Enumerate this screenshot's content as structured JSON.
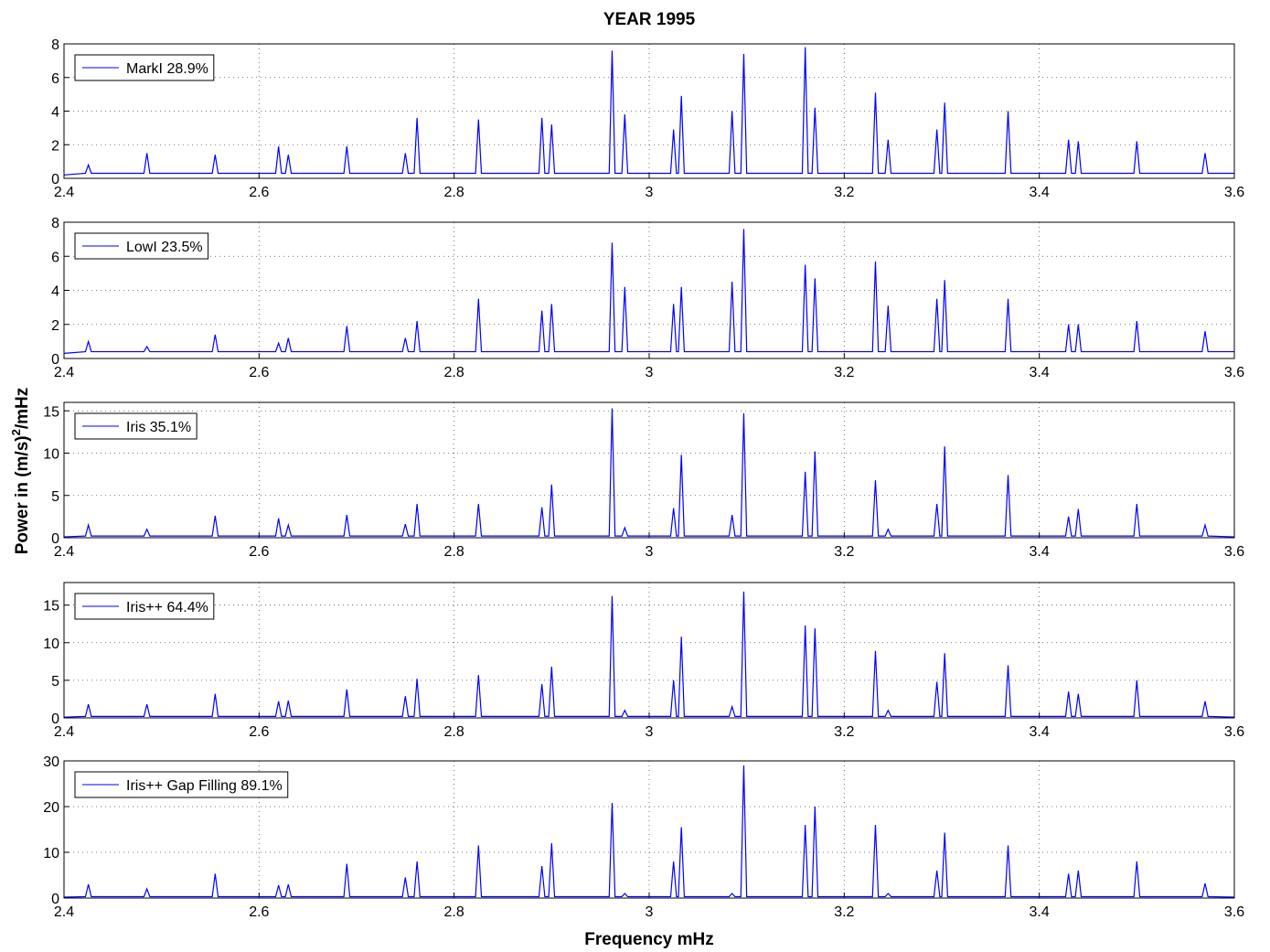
{
  "chart_data": [
    {
      "type": "line",
      "title": "YEAR 1995",
      "grid": true,
      "legend": "upper left",
      "x": [
        2.4,
        2.422,
        2.425,
        2.428,
        2.482,
        2.485,
        2.488,
        2.552,
        2.555,
        2.558,
        2.617,
        2.62,
        2.623,
        2.627,
        2.63,
        2.633,
        2.687,
        2.69,
        2.693,
        2.747,
        2.75,
        2.753,
        2.759,
        2.762,
        2.765,
        2.822,
        2.825,
        2.828,
        2.887,
        2.89,
        2.893,
        2.897,
        2.9,
        2.903,
        2.959,
        2.962,
        2.965,
        2.972,
        2.975,
        2.978,
        3.022,
        3.025,
        3.028,
        3.03,
        3.033,
        3.036,
        3.082,
        3.085,
        3.088,
        3.094,
        3.097,
        3.1,
        3.157,
        3.16,
        3.163,
        3.167,
        3.17,
        3.173,
        3.229,
        3.232,
        3.235,
        3.242,
        3.245,
        3.248,
        3.292,
        3.295,
        3.298,
        3.3,
        3.303,
        3.306,
        3.365,
        3.368,
        3.371,
        3.427,
        3.43,
        3.433,
        3.437,
        3.44,
        3.443,
        3.497,
        3.5,
        3.503,
        3.567,
        3.57,
        3.573,
        3.6
      ],
      "xlim": [
        2.4,
        3.6
      ],
      "xticks": [
        2.4,
        2.6,
        2.8,
        3,
        3.2,
        3.4,
        3.6
      ],
      "ylim": [
        0,
        8
      ],
      "yticks": [
        0,
        2,
        4,
        6,
        8
      ],
      "series": [
        {
          "name": "MarkI 28.9%",
          "color": "#0000ff",
          "values": [
            0.2,
            0.3,
            0.8,
            0.3,
            0.3,
            1.5,
            0.3,
            0.3,
            1.4,
            0.3,
            0.3,
            1.9,
            0.3,
            0.3,
            1.4,
            0.3,
            0.3,
            1.9,
            0.3,
            0.3,
            1.5,
            0.3,
            0.3,
            3.6,
            0.3,
            0.3,
            3.5,
            0.3,
            0.3,
            3.6,
            0.3,
            0.3,
            3.2,
            0.3,
            0.3,
            7.6,
            0.3,
            0.3,
            3.8,
            0.3,
            0.3,
            2.9,
            0.3,
            0.3,
            4.9,
            0.3,
            0.3,
            4.0,
            0.3,
            0.3,
            7.4,
            0.3,
            0.3,
            7.8,
            0.3,
            0.3,
            4.2,
            0.3,
            0.3,
            5.1,
            0.3,
            0.3,
            2.3,
            0.3,
            0.3,
            2.9,
            0.3,
            0.3,
            4.5,
            0.3,
            0.3,
            4.0,
            0.3,
            0.3,
            2.3,
            0.3,
            0.3,
            2.2,
            0.3,
            0.3,
            2.2,
            0.3,
            0.3,
            1.5,
            0.3,
            0.3
          ]
        }
      ]
    },
    {
      "type": "line",
      "grid": true,
      "legend": "upper left",
      "x": [
        2.4,
        2.422,
        2.425,
        2.428,
        2.482,
        2.485,
        2.488,
        2.552,
        2.555,
        2.558,
        2.617,
        2.62,
        2.623,
        2.627,
        2.63,
        2.633,
        2.687,
        2.69,
        2.693,
        2.747,
        2.75,
        2.753,
        2.759,
        2.762,
        2.765,
        2.822,
        2.825,
        2.828,
        2.887,
        2.89,
        2.893,
        2.897,
        2.9,
        2.903,
        2.959,
        2.962,
        2.965,
        2.972,
        2.975,
        2.978,
        3.022,
        3.025,
        3.028,
        3.03,
        3.033,
        3.036,
        3.082,
        3.085,
        3.088,
        3.094,
        3.097,
        3.1,
        3.157,
        3.16,
        3.163,
        3.167,
        3.17,
        3.173,
        3.229,
        3.232,
        3.235,
        3.242,
        3.245,
        3.248,
        3.292,
        3.295,
        3.298,
        3.3,
        3.303,
        3.306,
        3.365,
        3.368,
        3.371,
        3.427,
        3.43,
        3.433,
        3.437,
        3.44,
        3.443,
        3.497,
        3.5,
        3.503,
        3.567,
        3.57,
        3.573,
        3.6
      ],
      "xlim": [
        2.4,
        3.6
      ],
      "xticks": [
        2.4,
        2.6,
        2.8,
        3,
        3.2,
        3.4,
        3.6
      ],
      "ylim": [
        0,
        8
      ],
      "yticks": [
        0,
        2,
        4,
        6,
        8
      ],
      "series": [
        {
          "name": "LowI 23.5%",
          "color": "#0000ff",
          "values": [
            0.3,
            0.4,
            1.0,
            0.4,
            0.4,
            0.7,
            0.4,
            0.4,
            1.4,
            0.4,
            0.4,
            0.9,
            0.4,
            0.4,
            1.2,
            0.4,
            0.4,
            1.9,
            0.4,
            0.4,
            1.2,
            0.4,
            0.4,
            2.2,
            0.4,
            0.4,
            3.5,
            0.4,
            0.4,
            2.8,
            0.4,
            0.4,
            3.2,
            0.4,
            0.4,
            6.8,
            0.4,
            0.4,
            4.2,
            0.4,
            0.4,
            3.2,
            0.4,
            0.4,
            4.2,
            0.4,
            0.4,
            4.5,
            0.4,
            0.4,
            7.6,
            0.4,
            0.4,
            5.5,
            0.4,
            0.4,
            4.7,
            0.4,
            0.4,
            5.7,
            0.4,
            0.4,
            3.1,
            0.4,
            0.4,
            3.5,
            0.4,
            0.4,
            4.6,
            0.4,
            0.4,
            3.5,
            0.4,
            0.4,
            2.0,
            0.4,
            0.4,
            2.0,
            0.4,
            0.4,
            2.2,
            0.4,
            0.4,
            1.6,
            0.4,
            0.4
          ]
        }
      ]
    },
    {
      "type": "line",
      "grid": true,
      "legend": "upper left",
      "ylabel": [
        "Power in (m/s)",
        "2",
        "/mHz"
      ],
      "x": [
        2.4,
        2.422,
        2.425,
        2.428,
        2.482,
        2.485,
        2.488,
        2.552,
        2.555,
        2.558,
        2.617,
        2.62,
        2.623,
        2.627,
        2.63,
        2.633,
        2.687,
        2.69,
        2.693,
        2.747,
        2.75,
        2.753,
        2.759,
        2.762,
        2.765,
        2.822,
        2.825,
        2.828,
        2.887,
        2.89,
        2.893,
        2.897,
        2.9,
        2.903,
        2.959,
        2.962,
        2.965,
        2.972,
        2.975,
        2.978,
        3.022,
        3.025,
        3.028,
        3.03,
        3.033,
        3.036,
        3.082,
        3.085,
        3.088,
        3.094,
        3.097,
        3.1,
        3.157,
        3.16,
        3.163,
        3.167,
        3.17,
        3.173,
        3.229,
        3.232,
        3.235,
        3.242,
        3.245,
        3.248,
        3.292,
        3.295,
        3.298,
        3.3,
        3.303,
        3.306,
        3.365,
        3.368,
        3.371,
        3.427,
        3.43,
        3.433,
        3.437,
        3.44,
        3.443,
        3.497,
        3.5,
        3.503,
        3.567,
        3.57,
        3.573,
        3.6
      ],
      "xlim": [
        2.4,
        3.6
      ],
      "xticks": [
        2.4,
        2.6,
        2.8,
        3,
        3.2,
        3.4,
        3.6
      ],
      "ylim": [
        0,
        16
      ],
      "yticks": [
        0,
        5,
        10,
        15
      ],
      "series": [
        {
          "name": "Iris 35.1%",
          "color": "#0000ff",
          "values": [
            0.1,
            0.2,
            1.5,
            0.2,
            0.2,
            1.0,
            0.2,
            0.2,
            2.6,
            0.2,
            0.2,
            2.3,
            0.2,
            0.2,
            1.5,
            0.2,
            0.2,
            2.7,
            0.2,
            0.2,
            1.6,
            0.2,
            0.2,
            4.0,
            0.2,
            0.2,
            4.0,
            0.2,
            0.2,
            3.6,
            0.2,
            0.2,
            6.3,
            0.2,
            0.2,
            15.3,
            0.2,
            0.2,
            1.2,
            0.2,
            0.2,
            3.5,
            0.2,
            0.2,
            9.8,
            0.2,
            0.2,
            2.7,
            0.2,
            0.2,
            14.7,
            0.2,
            0.2,
            7.8,
            0.2,
            0.2,
            10.2,
            0.2,
            0.2,
            6.8,
            0.2,
            0.2,
            1.0,
            0.2,
            0.2,
            4.0,
            0.2,
            0.2,
            10.8,
            0.2,
            0.2,
            7.4,
            0.2,
            0.2,
            2.5,
            0.2,
            0.2,
            3.4,
            0.2,
            0.2,
            4.0,
            0.2,
            0.2,
            1.5,
            0.2,
            0.1
          ]
        }
      ]
    },
    {
      "type": "line",
      "grid": true,
      "legend": "upper left",
      "x": [
        2.4,
        2.422,
        2.425,
        2.428,
        2.482,
        2.485,
        2.488,
        2.552,
        2.555,
        2.558,
        2.617,
        2.62,
        2.623,
        2.627,
        2.63,
        2.633,
        2.687,
        2.69,
        2.693,
        2.747,
        2.75,
        2.753,
        2.759,
        2.762,
        2.765,
        2.822,
        2.825,
        2.828,
        2.887,
        2.89,
        2.893,
        2.897,
        2.9,
        2.903,
        2.959,
        2.962,
        2.965,
        2.972,
        2.975,
        2.978,
        3.022,
        3.025,
        3.028,
        3.03,
        3.033,
        3.036,
        3.082,
        3.085,
        3.088,
        3.094,
        3.097,
        3.1,
        3.157,
        3.16,
        3.163,
        3.167,
        3.17,
        3.173,
        3.229,
        3.232,
        3.235,
        3.242,
        3.245,
        3.248,
        3.292,
        3.295,
        3.298,
        3.3,
        3.303,
        3.306,
        3.365,
        3.368,
        3.371,
        3.427,
        3.43,
        3.433,
        3.437,
        3.44,
        3.443,
        3.497,
        3.5,
        3.503,
        3.567,
        3.57,
        3.573,
        3.6
      ],
      "xlim": [
        2.4,
        3.6
      ],
      "xticks": [
        2.4,
        2.6,
        2.8,
        3,
        3.2,
        3.4,
        3.6
      ],
      "ylim": [
        0,
        18
      ],
      "yticks": [
        0,
        5,
        10,
        15
      ],
      "series": [
        {
          "name": "Iris++ 64.4%",
          "color": "#0000ff",
          "values": [
            0.1,
            0.2,
            1.8,
            0.2,
            0.2,
            1.8,
            0.2,
            0.2,
            3.2,
            0.2,
            0.2,
            2.2,
            0.2,
            0.2,
            2.3,
            0.2,
            0.2,
            3.8,
            0.2,
            0.2,
            2.9,
            0.2,
            0.2,
            5.2,
            0.2,
            0.2,
            5.7,
            0.2,
            0.2,
            4.5,
            0.2,
            0.2,
            6.8,
            0.2,
            0.2,
            16.2,
            0.2,
            0.2,
            1.0,
            0.2,
            0.2,
            5.0,
            0.2,
            0.2,
            10.8,
            0.2,
            0.2,
            1.5,
            0.2,
            0.2,
            16.8,
            0.2,
            0.2,
            12.3,
            0.2,
            0.2,
            11.9,
            0.2,
            0.2,
            8.9,
            0.2,
            0.2,
            1.0,
            0.2,
            0.2,
            4.8,
            0.2,
            0.2,
            8.6,
            0.2,
            0.2,
            7.0,
            0.2,
            0.2,
            3.5,
            0.2,
            0.2,
            3.2,
            0.2,
            0.2,
            5.0,
            0.2,
            0.2,
            2.2,
            0.2,
            0.1
          ]
        }
      ]
    },
    {
      "type": "line",
      "grid": true,
      "legend": "upper left",
      "xlabel": "Frequency mHz",
      "x": [
        2.4,
        2.422,
        2.425,
        2.428,
        2.482,
        2.485,
        2.488,
        2.552,
        2.555,
        2.558,
        2.617,
        2.62,
        2.623,
        2.627,
        2.63,
        2.633,
        2.687,
        2.69,
        2.693,
        2.747,
        2.75,
        2.753,
        2.759,
        2.762,
        2.765,
        2.822,
        2.825,
        2.828,
        2.887,
        2.89,
        2.893,
        2.897,
        2.9,
        2.903,
        2.959,
        2.962,
        2.965,
        2.972,
        2.975,
        2.978,
        3.022,
        3.025,
        3.028,
        3.03,
        3.033,
        3.036,
        3.082,
        3.085,
        3.088,
        3.094,
        3.097,
        3.1,
        3.157,
        3.16,
        3.163,
        3.167,
        3.17,
        3.173,
        3.229,
        3.232,
        3.235,
        3.242,
        3.245,
        3.248,
        3.292,
        3.295,
        3.298,
        3.3,
        3.303,
        3.306,
        3.365,
        3.368,
        3.371,
        3.427,
        3.43,
        3.433,
        3.437,
        3.44,
        3.443,
        3.497,
        3.5,
        3.503,
        3.567,
        3.57,
        3.573,
        3.6
      ],
      "xlim": [
        2.4,
        3.6
      ],
      "xticks": [
        2.4,
        2.6,
        2.8,
        3,
        3.2,
        3.4,
        3.6
      ],
      "ylim": [
        0,
        30
      ],
      "yticks": [
        0,
        10,
        20,
        30
      ],
      "series": [
        {
          "name": "Iris++ Gap Filling 89.1%",
          "color": "#0000ff",
          "values": [
            0.2,
            0.3,
            3,
            0.3,
            0.3,
            2,
            0.3,
            0.3,
            5.3,
            0.3,
            0.3,
            2.8,
            0.3,
            0.3,
            3.0,
            0.3,
            0.3,
            7.5,
            0.3,
            0.3,
            4.5,
            0.3,
            0.3,
            8,
            0.3,
            0.3,
            11.5,
            0.3,
            0.3,
            7,
            0.3,
            0.3,
            12,
            0.3,
            0.3,
            20.8,
            0.3,
            0.3,
            1,
            0.3,
            0.3,
            8,
            0.3,
            0.3,
            15.5,
            0.3,
            0.3,
            1,
            0.3,
            0.3,
            29,
            0.3,
            0.3,
            16,
            0.3,
            0.3,
            20,
            0.3,
            0.3,
            16,
            0.3,
            0.3,
            1,
            0.3,
            0.3,
            6,
            0.3,
            0.3,
            14.3,
            0.3,
            0.3,
            11.5,
            0.3,
            0.3,
            5.3,
            0.3,
            0.3,
            6,
            0.3,
            0.3,
            8,
            0.3,
            0.3,
            3.2,
            0.3,
            0.2
          ]
        }
      ]
    }
  ]
}
